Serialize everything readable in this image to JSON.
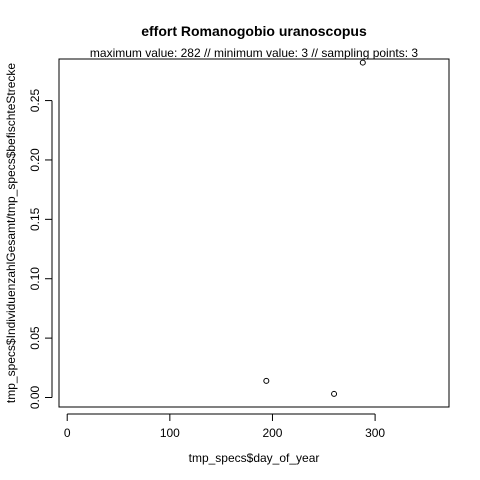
{
  "chart_data": {
    "type": "scatter",
    "title": "effort Romanogobio uranoscopus",
    "subtitle": "maximum value: 282  //  minimum value: 3  // sampling points: 3",
    "xlabel": "tmp_specs$day_of_year",
    "ylabel": "tmp_specs$IndividuenzahlGesamt/tmp_specs$befischteStrecke",
    "xlim": [
      -8,
      372
    ],
    "ylim": [
      -0.008,
      0.285
    ],
    "x_ticks": [
      0,
      100,
      200,
      300
    ],
    "x_tick_labels": [
      "0",
      "100",
      "200",
      "300"
    ],
    "y_ticks": [
      0.0,
      0.05,
      0.1,
      0.15,
      0.2,
      0.25
    ],
    "y_tick_labels": [
      "0.00",
      "0.05",
      "0.10",
      "0.15",
      "0.20",
      "0.25"
    ],
    "points": [
      {
        "x": 194,
        "y": 0.014
      },
      {
        "x": 260,
        "y": 0.003
      },
      {
        "x": 288,
        "y": 0.282
      }
    ],
    "grid": false,
    "legend": "none"
  }
}
